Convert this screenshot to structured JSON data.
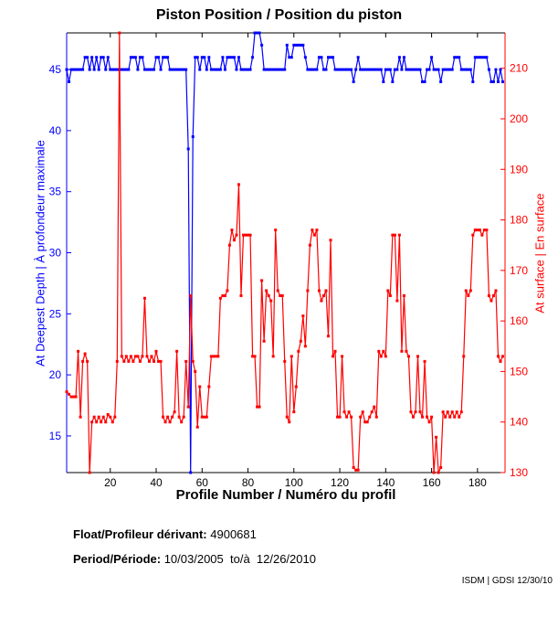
{
  "chart_data": {
    "type": "line",
    "title": "Piston Position / Position du piston",
    "xlabel": "Profile Number / Numéro du profil",
    "ylabel_left": "At Deepest Depth | À profondeur maximale",
    "ylabel_right": "At surface | En surface",
    "xlim": [
      1,
      192
    ],
    "ylim_left": [
      12,
      48
    ],
    "ylim_right": [
      130,
      217
    ],
    "x_ticks": [
      20,
      40,
      60,
      80,
      100,
      120,
      140,
      160,
      180
    ],
    "y_ticks_left": [
      15,
      20,
      25,
      30,
      35,
      40,
      45
    ],
    "y_ticks_right": [
      130,
      140,
      150,
      160,
      170,
      180,
      190,
      200,
      210
    ],
    "grid": false,
    "series": [
      {
        "name": "At Deepest Depth",
        "axis": "left",
        "color": "#0000ff",
        "values": [
          45,
          44,
          45,
          45,
          45,
          45,
          45,
          45,
          46,
          46,
          45,
          46,
          45,
          46,
          45,
          46,
          46,
          45,
          46,
          45,
          45,
          45,
          45,
          45,
          45,
          45,
          45,
          45,
          46,
          46,
          46,
          45,
          46,
          46,
          45,
          45,
          45,
          45,
          45,
          46,
          46,
          45,
          46,
          46,
          46,
          45,
          45,
          45,
          45,
          45,
          45,
          45,
          45,
          38.5,
          12,
          39.5,
          46,
          46,
          45,
          46,
          46,
          45,
          46,
          45,
          45,
          45,
          45,
          45,
          46,
          45,
          46,
          46,
          46,
          46,
          45,
          46,
          45,
          45,
          45,
          45,
          45,
          46,
          48,
          48,
          48,
          47,
          45,
          45,
          45,
          45,
          45,
          45,
          45,
          45,
          45,
          45,
          47,
          46,
          46,
          47,
          47,
          47,
          47,
          47,
          46,
          45,
          45,
          45,
          45,
          45,
          46,
          46,
          45,
          45,
          46,
          46,
          46,
          45,
          45,
          45,
          45,
          45,
          45,
          45,
          45,
          44,
          45,
          46,
          45,
          45,
          45,
          45,
          45,
          45,
          45,
          45,
          45,
          45,
          44,
          45,
          45,
          45,
          44,
          45,
          45,
          46,
          45,
          46,
          45,
          45,
          45,
          45,
          45,
          45,
          45,
          44,
          44,
          45,
          45,
          46,
          45,
          45,
          45,
          44,
          45,
          45,
          45,
          45,
          45,
          46,
          46,
          46,
          45,
          45,
          45,
          45,
          45,
          44,
          46,
          46,
          46,
          46,
          46,
          46,
          45,
          44,
          44,
          45,
          44,
          45,
          44
        ]
      },
      {
        "name": "At surface",
        "axis": "right",
        "color": "#ff0000",
        "values": [
          146,
          145.5,
          145,
          145,
          145,
          154,
          141,
          152,
          153.5,
          152,
          130,
          140,
          141,
          140,
          141,
          140,
          141,
          140,
          141.5,
          141,
          140,
          141,
          152,
          217,
          153,
          152,
          153,
          152,
          153,
          152,
          153,
          153,
          152,
          153,
          164.5,
          153,
          152,
          153,
          152,
          154,
          152,
          152,
          141,
          140,
          141,
          140,
          141,
          142,
          154,
          141,
          140,
          141,
          152,
          143,
          165,
          152,
          150,
          139,
          147,
          141,
          141,
          141,
          147,
          153,
          153,
          153,
          153,
          164.5,
          165,
          165,
          166,
          175,
          178,
          176,
          177,
          187,
          165,
          177,
          177,
          177,
          177,
          153,
          153,
          143,
          143,
          168,
          156,
          166,
          165,
          164,
          153,
          178,
          166,
          165,
          165,
          152,
          141,
          140,
          153,
          142,
          147,
          154,
          156,
          161,
          155,
          166,
          175,
          178,
          177,
          178,
          166,
          164,
          165,
          166,
          157,
          176,
          153,
          154,
          141,
          141,
          153,
          142,
          141,
          142,
          141,
          131,
          130.5,
          130.5,
          141,
          142,
          140,
          140,
          141,
          142,
          143,
          141,
          154,
          153,
          154,
          153,
          166,
          165,
          177,
          177,
          164,
          177,
          154,
          165,
          154,
          153,
          142,
          141,
          142,
          153,
          142,
          141,
          152,
          141,
          140,
          141,
          130,
          137,
          130,
          131,
          142,
          141,
          142,
          141,
          142,
          141,
          142,
          141,
          142,
          153,
          166,
          165,
          166,
          177,
          178,
          178,
          178,
          177,
          178,
          178,
          165,
          164,
          165,
          166,
          153,
          152,
          153
        ]
      }
    ]
  },
  "footer": {
    "float_label": "Float/Profileur dérivant:",
    "float_id": "4900681",
    "period_label": "Period/Période:",
    "period_value": "10/03/2005  to/à  12/26/2010",
    "credit": "ISDM | GDSI 12/30/10"
  }
}
